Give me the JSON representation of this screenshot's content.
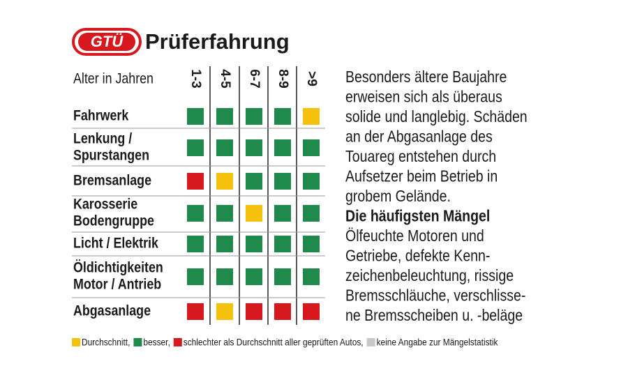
{
  "header": {
    "logo": "GTÜ",
    "title": "Prüferfahrung"
  },
  "table": {
    "column_header": "Alter in Jahren",
    "columns": [
      "1-3",
      "4-5",
      "6-7",
      "8-9",
      ">9"
    ],
    "rows": [
      {
        "label": [
          "Fahrwerk"
        ],
        "cells": [
          "#1f8a4c",
          "#1f8a4c",
          "#1f8a4c",
          "#1f8a4c",
          "#f4c20d"
        ]
      },
      {
        "label": [
          "Lenkung /",
          "Spurstangen"
        ],
        "cells": [
          "#1f8a4c",
          "#1f8a4c",
          "#1f8a4c",
          "#1f8a4c",
          "#1f8a4c"
        ]
      },
      {
        "label": [
          "Bremsanlage"
        ],
        "cells": [
          "#d7191f",
          "#f4c20d",
          "#1f8a4c",
          "#1f8a4c",
          "#1f8a4c"
        ]
      },
      {
        "label": [
          "Karosserie",
          "Bodengruppe"
        ],
        "cells": [
          "#1f8a4c",
          "#1f8a4c",
          "#f4c20d",
          "#1f8a4c",
          "#1f8a4c"
        ]
      },
      {
        "label": [
          "Licht / Elektrik"
        ],
        "cells": [
          "#1f8a4c",
          "#1f8a4c",
          "#1f8a4c",
          "#1f8a4c",
          "#1f8a4c"
        ]
      },
      {
        "label": [
          "Öldichtigkeiten",
          "Motor / Antrieb"
        ],
        "cells": [
          "#1f8a4c",
          "#1f8a4c",
          "#1f8a4c",
          "#1f8a4c",
          "#1f8a4c"
        ]
      },
      {
        "label": [
          "Abgasanlage"
        ],
        "cells": [
          "#d7191f",
          "#f4c20d",
          "#d7191f",
          "#d7191f",
          "#d7191f"
        ]
      }
    ]
  },
  "text": {
    "intro": [
      "Besonders ältere Baujahre",
      "erweisen sich als überaus",
      "solide und langlebig. Schäden",
      "an der Abgasanlage des",
      "Touareg entstehen durch",
      "Aufsetzer beim Betrieb in",
      "grobem Gelände."
    ],
    "heading": "Die häufigsten Mängel",
    "body": [
      "Ölfeuchte Motoren und",
      "Getriebe, defekte Kenn-",
      "zeichenbeleuchtung, rissige",
      "Bremsschläuche, verschlisse-",
      "ne Bremsscheiben u. -beläge"
    ]
  },
  "legend": [
    {
      "label": "Durchschnitt,",
      "color": "#f4c20d"
    },
    {
      "label": "besser,",
      "color": "#1f8a4c"
    },
    {
      "label": "schlechter als Durchschnitt aller geprüften Autos,",
      "color": "#d7191f"
    },
    {
      "label": "keine Angabe zur Mängelstatistik",
      "color": "#c8c8c8"
    }
  ]
}
